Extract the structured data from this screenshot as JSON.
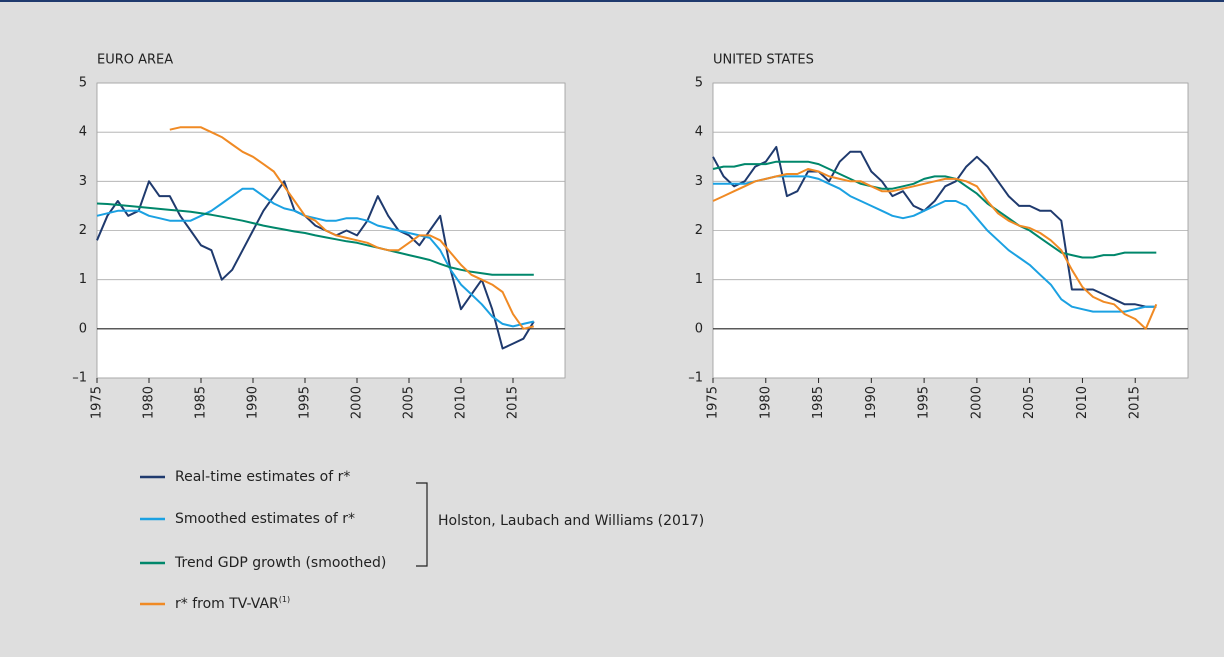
{
  "chart_data": [
    {
      "type": "line",
      "title": "EURO AREA",
      "x": [
        1975,
        1976,
        1977,
        1978,
        1979,
        1980,
        1981,
        1982,
        1983,
        1984,
        1985,
        1986,
        1987,
        1988,
        1989,
        1990,
        1991,
        1992,
        1993,
        1994,
        1995,
        1996,
        1997,
        1998,
        1999,
        2000,
        2001,
        2002,
        2003,
        2004,
        2005,
        2006,
        2007,
        2008,
        2009,
        2010,
        2011,
        2012,
        2013,
        2014,
        2015,
        2016,
        2017
      ],
      "xlim": [
        1975,
        2020
      ],
      "xticks": [
        1975,
        1980,
        1985,
        1990,
        1995,
        2000,
        2005,
        2010,
        2015
      ],
      "ylim": [
        -1,
        5
      ],
      "yticks": [
        {
          "value": -1,
          "label": "–1"
        },
        0,
        1,
        2,
        3,
        4,
        5
      ],
      "grid": true,
      "series": [
        {
          "name": "Real-time estimates of r*",
          "color": "#1f3a6e",
          "values": [
            1.8,
            2.3,
            2.6,
            2.3,
            2.4,
            3.0,
            2.7,
            2.7,
            2.3,
            2.0,
            1.7,
            1.6,
            1.0,
            1.2,
            1.6,
            2.0,
            2.4,
            2.7,
            3.0,
            2.4,
            2.3,
            2.1,
            2.0,
            1.9,
            2.0,
            1.9,
            2.2,
            2.7,
            2.3,
            2.0,
            1.9,
            1.7,
            2.0,
            2.3,
            1.2,
            0.4,
            0.7,
            1.0,
            0.4,
            -0.4,
            -0.3,
            -0.2,
            0.15
          ]
        },
        {
          "name": "Smoothed estimates of r*",
          "color": "#1ba1e2",
          "values": [
            2.3,
            2.35,
            2.4,
            2.4,
            2.4,
            2.3,
            2.25,
            2.2,
            2.2,
            2.2,
            2.3,
            2.4,
            2.55,
            2.7,
            2.85,
            2.85,
            2.7,
            2.55,
            2.45,
            2.4,
            2.3,
            2.25,
            2.2,
            2.2,
            2.25,
            2.25,
            2.2,
            2.1,
            2.05,
            2.0,
            1.95,
            1.9,
            1.85,
            1.6,
            1.2,
            0.9,
            0.7,
            0.5,
            0.25,
            0.1,
            0.05,
            0.1,
            0.15
          ]
        },
        {
          "name": "Trend GDP growth (smoothed)",
          "color": "#00876b",
          "values": [
            2.55,
            2.54,
            2.52,
            2.5,
            2.48,
            2.46,
            2.44,
            2.42,
            2.4,
            2.38,
            2.35,
            2.32,
            2.28,
            2.24,
            2.2,
            2.15,
            2.1,
            2.06,
            2.02,
            1.98,
            1.95,
            1.9,
            1.86,
            1.82,
            1.78,
            1.75,
            1.7,
            1.65,
            1.6,
            1.55,
            1.5,
            1.45,
            1.4,
            1.32,
            1.25,
            1.2,
            1.16,
            1.13,
            1.1,
            1.1,
            1.1,
            1.1,
            1.1
          ]
        },
        {
          "name": "r* from TV-VAR",
          "footnote": "(1)",
          "color": "#f08a24",
          "values": [
            null,
            null,
            null,
            null,
            null,
            null,
            null,
            4.05,
            4.1,
            4.1,
            4.1,
            4.0,
            3.9,
            3.75,
            3.6,
            3.5,
            3.35,
            3.2,
            2.9,
            2.6,
            2.3,
            2.2,
            2.0,
            1.9,
            1.85,
            1.8,
            1.75,
            1.65,
            1.6,
            1.6,
            1.75,
            1.9,
            1.9,
            1.8,
            1.55,
            1.3,
            1.1,
            1.0,
            0.9,
            0.75,
            0.3,
            0.0,
            0.05
          ]
        }
      ]
    },
    {
      "type": "line",
      "title": "UNITED STATES",
      "x": [
        1975,
        1976,
        1977,
        1978,
        1979,
        1980,
        1981,
        1982,
        1983,
        1984,
        1985,
        1986,
        1987,
        1988,
        1989,
        1990,
        1991,
        1992,
        1993,
        1994,
        1995,
        1996,
        1997,
        1998,
        1999,
        2000,
        2001,
        2002,
        2003,
        2004,
        2005,
        2006,
        2007,
        2008,
        2009,
        2010,
        2011,
        2012,
        2013,
        2014,
        2015,
        2016,
        2017
      ],
      "xlim": [
        1975,
        2020
      ],
      "xticks": [
        1975,
        1980,
        1985,
        1990,
        1995,
        2000,
        2005,
        2010,
        2015
      ],
      "ylim": [
        -1,
        5
      ],
      "yticks": [
        {
          "value": -1,
          "label": "–1"
        },
        0,
        1,
        2,
        3,
        4,
        5
      ],
      "grid": true,
      "series": [
        {
          "color": "#1f3a6e",
          "values": [
            3.5,
            3.1,
            2.9,
            3.0,
            3.3,
            3.4,
            3.7,
            2.7,
            2.8,
            3.2,
            3.2,
            3.0,
            3.4,
            3.6,
            3.6,
            3.2,
            3.0,
            2.7,
            2.8,
            2.5,
            2.4,
            2.6,
            2.9,
            3.0,
            3.3,
            3.5,
            3.3,
            3.0,
            2.7,
            2.5,
            2.5,
            2.4,
            2.4,
            2.2,
            0.8,
            0.8,
            0.8,
            0.7,
            0.6,
            0.5,
            0.5,
            0.45,
            0.45
          ]
        },
        {
          "color": "#1ba1e2",
          "values": [
            2.95,
            2.95,
            2.95,
            2.95,
            3.0,
            3.05,
            3.1,
            3.1,
            3.1,
            3.1,
            3.05,
            2.95,
            2.85,
            2.7,
            2.6,
            2.5,
            2.4,
            2.3,
            2.25,
            2.3,
            2.4,
            2.5,
            2.6,
            2.6,
            2.5,
            2.25,
            2.0,
            1.8,
            1.6,
            1.45,
            1.3,
            1.1,
            0.9,
            0.6,
            0.45,
            0.4,
            0.35,
            0.35,
            0.35,
            0.35,
            0.4,
            0.45,
            0.45
          ]
        },
        {
          "color": "#00876b",
          "values": [
            3.25,
            3.3,
            3.3,
            3.35,
            3.35,
            3.35,
            3.4,
            3.4,
            3.4,
            3.4,
            3.35,
            3.25,
            3.15,
            3.05,
            2.95,
            2.9,
            2.85,
            2.85,
            2.9,
            2.95,
            3.05,
            3.1,
            3.1,
            3.05,
            2.9,
            2.75,
            2.55,
            2.4,
            2.25,
            2.1,
            2.0,
            1.85,
            1.7,
            1.55,
            1.5,
            1.45,
            1.45,
            1.5,
            1.5,
            1.55,
            1.55,
            1.55,
            1.55
          ]
        },
        {
          "color": "#f08a24",
          "values": [
            2.6,
            2.7,
            2.8,
            2.9,
            3.0,
            3.05,
            3.1,
            3.15,
            3.15,
            3.25,
            3.2,
            3.1,
            3.05,
            3.0,
            3.0,
            2.9,
            2.8,
            2.8,
            2.85,
            2.9,
            2.95,
            3.0,
            3.05,
            3.05,
            3.0,
            2.9,
            2.6,
            2.35,
            2.2,
            2.1,
            2.05,
            1.95,
            1.8,
            1.6,
            1.2,
            0.85,
            0.65,
            0.55,
            0.5,
            0.3,
            0.2,
            0.0,
            0.5
          ]
        }
      ]
    }
  ],
  "legend_group_label": "Holston, Laubach and Williams (2017)"
}
